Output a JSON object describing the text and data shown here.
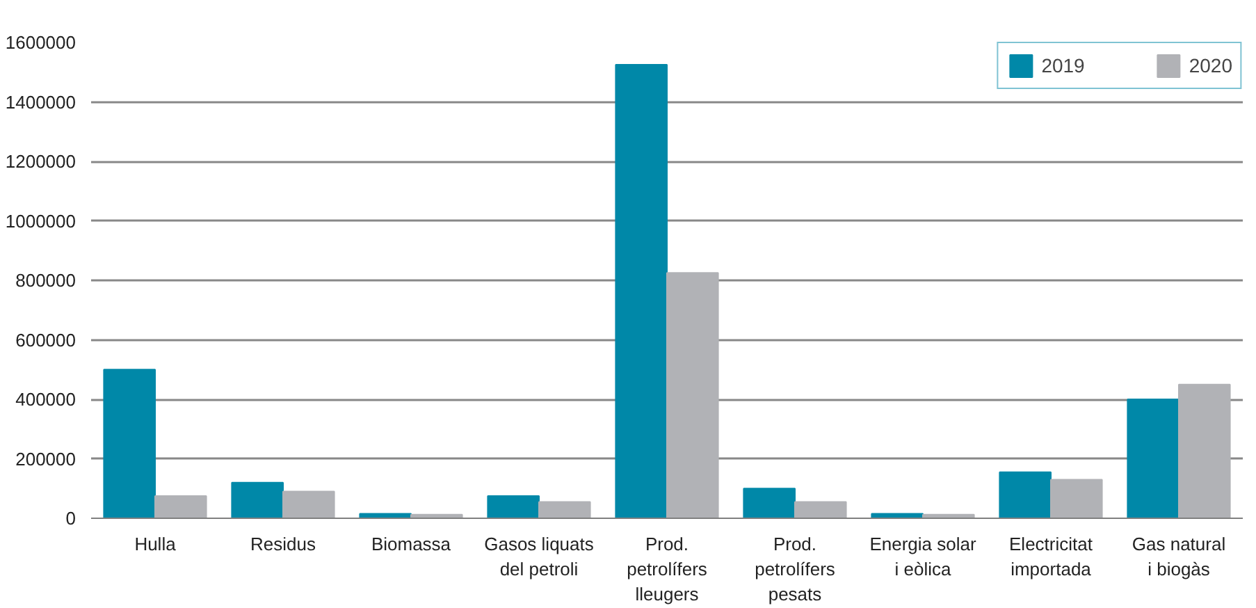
{
  "chart_data": {
    "type": "bar",
    "categories": [
      "Hulla",
      "Residus",
      "Biomassa",
      "Gasos liquats\ndel petroli",
      "Prod.\npetrolífers\nlleugers",
      "Prod.\npetrolífers\npesats",
      "Energia solar\ni eòlica",
      "Electricitat\nimportada",
      "Gas natural\ni biogàs"
    ],
    "series": [
      {
        "name": "2019",
        "color": "#0088a8",
        "values": [
          500000,
          120000,
          15000,
          75000,
          1525000,
          100000,
          15000,
          155000,
          400000
        ]
      },
      {
        "name": "2020",
        "color": "#b1b2b6",
        "values": [
          75000,
          90000,
          12000,
          55000,
          825000,
          55000,
          12000,
          130000,
          450000
        ]
      }
    ],
    "ylim": [
      0,
      1600000
    ],
    "yticks": [
      0,
      200000,
      400000,
      600000,
      800000,
      1000000,
      1200000,
      1400000,
      1600000
    ],
    "grid": "y",
    "legend": "top right"
  }
}
